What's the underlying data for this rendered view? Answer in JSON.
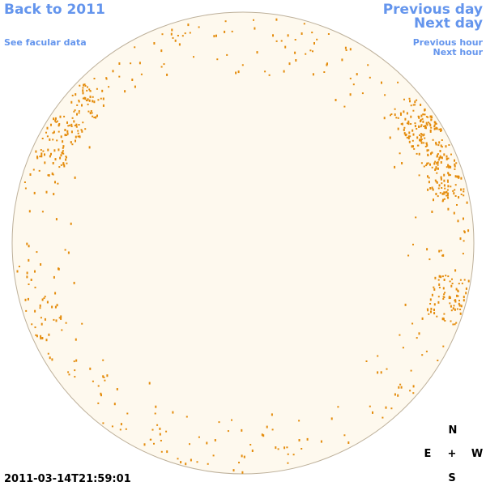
{
  "nav": {
    "back": "Back to 2011",
    "facular": "See facular data",
    "previous_day": "Previous day",
    "next_day": "Next day",
    "previous_hour": "Previous hour",
    "next_hour": "Next hour"
  },
  "timestamp": "2011-03-14T21:59:01",
  "compass": {
    "north": "N",
    "east": "E",
    "center": "+",
    "west": "W",
    "south": "S"
  }
}
